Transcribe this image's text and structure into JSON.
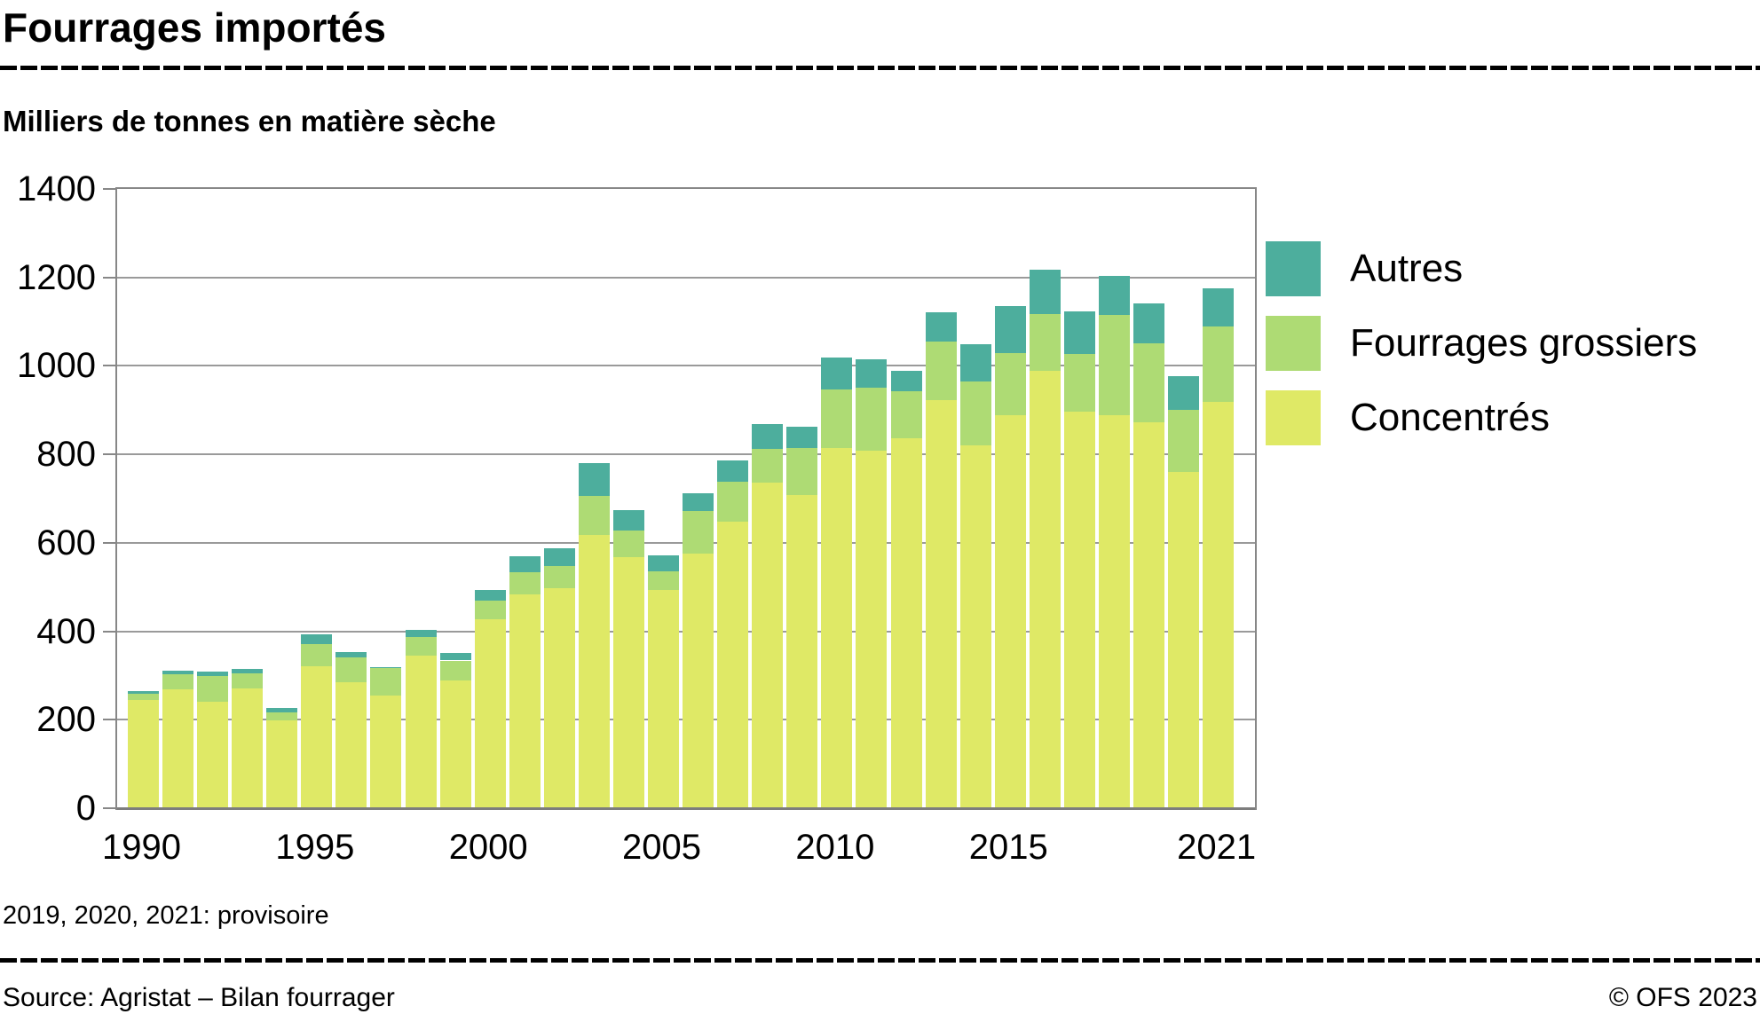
{
  "header": {
    "title": "Fourrages importés",
    "subtitle": "Milliers de tonnes en matière sèche"
  },
  "footnote": "2019, 2020, 2021: provisoire",
  "footer": {
    "source": "Source: Agristat – Bilan fourrager",
    "copyright": "© OFS 2023"
  },
  "colors": {
    "autres": "#4DAE9D",
    "fourrages_grossiers": "#AEDB74",
    "concentres": "#DFE966",
    "grid": "#9A9A9A",
    "frame": "#878787"
  },
  "chart_data": {
    "type": "bar",
    "stacked": true,
    "title": "Fourrages importés",
    "subtitle": "Milliers de tonnes en matière sèche",
    "unit": "milliers de tonnes en matière sèche",
    "ylim": [
      0,
      1400
    ],
    "yticks": [
      0,
      200,
      400,
      600,
      800,
      1000,
      1200,
      1400
    ],
    "grid": "horizontal",
    "legend_position": "right",
    "categories": [
      1990,
      1991,
      1992,
      1993,
      1994,
      1995,
      1996,
      1997,
      1998,
      1999,
      2000,
      2001,
      2002,
      2003,
      2004,
      2005,
      2006,
      2007,
      2008,
      2009,
      2010,
      2011,
      2012,
      2013,
      2014,
      2015,
      2016,
      2017,
      2018,
      2019,
      2020,
      2021
    ],
    "xtick_labels": [
      "1990",
      "1995",
      "2000",
      "2005",
      "2010",
      "2015",
      "2021"
    ],
    "series": [
      {
        "name": "Concentrés",
        "color": "#DFE966",
        "values": [
          244,
          268,
          241,
          271,
          199,
          320,
          284,
          254,
          345,
          288,
          427,
          484,
          497,
          617,
          567,
          494,
          576,
          647,
          737,
          709,
          814,
          808,
          836,
          922,
          821,
          889,
          988,
          897,
          888,
          872,
          760,
          919
        ]
      },
      {
        "name": "Fourrages grossiers",
        "color": "#AEDB74",
        "values": [
          14,
          34,
          57,
          34,
          18,
          52,
          58,
          62,
          43,
          46,
          43,
          50,
          50,
          89,
          60,
          41,
          95,
          91,
          76,
          106,
          132,
          143,
          107,
          133,
          143,
          140,
          130,
          130,
          228,
          180,
          141,
          171
        ]
      },
      {
        "name": "Autres",
        "color": "#4DAE9D",
        "values": [
          6,
          8,
          10,
          9,
          9,
          21,
          12,
          3,
          15,
          18,
          24,
          36,
          40,
          74,
          46,
          37,
          42,
          49,
          56,
          48,
          72,
          63,
          46,
          67,
          85,
          106,
          100,
          97,
          88,
          90,
          75,
          85
        ]
      }
    ],
    "legend": [
      {
        "label": "Autres",
        "color": "#4DAE9D"
      },
      {
        "label": "Fourrages grossiers",
        "color": "#AEDB74"
      },
      {
        "label": "Concentrés",
        "color": "#DFE966"
      }
    ]
  }
}
